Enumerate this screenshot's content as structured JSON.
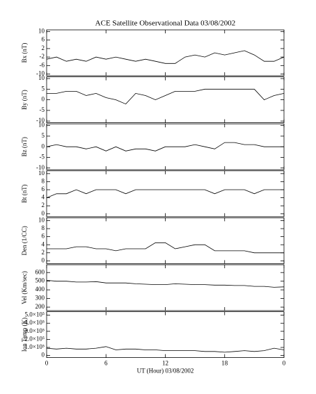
{
  "chart_data": [
    {
      "type": "line",
      "title": "ACE Satellite Observational Data   03/08/2002",
      "ylabel": "Bx (nT)",
      "x": [
        0,
        1,
        2,
        3,
        4,
        5,
        6,
        7,
        8,
        9,
        10,
        11,
        12,
        13,
        14,
        15,
        16,
        17,
        18,
        19,
        20,
        21,
        22,
        23,
        24
      ],
      "series": [
        {
          "name": "Bx",
          "color": "#000000",
          "values": [
            -3,
            -2,
            -4,
            -3,
            -4,
            -2,
            -3,
            -2,
            -3,
            -4,
            -3,
            -4,
            -5,
            -5,
            -2,
            -1,
            -2,
            0,
            -1,
            0,
            1,
            -1,
            -4,
            -4,
            -2
          ]
        }
      ],
      "xlim": [
        0,
        24
      ],
      "xticks": [
        0,
        6,
        12,
        18,
        {
          "value": 24,
          "label": "0"
        }
      ],
      "ylim": [
        -10.8,
        10.8
      ],
      "yticks": [
        10,
        6,
        2,
        -2,
        -6,
        -10
      ]
    },
    {
      "type": "line",
      "ylabel": "By (nT)",
      "x": [
        0,
        1,
        2,
        3,
        4,
        5,
        6,
        7,
        8,
        9,
        10,
        11,
        12,
        13,
        14,
        15,
        16,
        17,
        18,
        19,
        20,
        21,
        22,
        23,
        24
      ],
      "series": [
        {
          "name": "By",
          "color": "#000000",
          "values": [
            3,
            3,
            4,
            4,
            2,
            3,
            1,
            0,
            -2,
            3,
            2,
            0,
            2,
            4,
            4,
            4,
            5,
            5,
            5,
            5,
            5,
            5,
            0,
            2,
            3
          ]
        }
      ],
      "xlim": [
        0,
        24
      ],
      "xticks": [
        0,
        6,
        12,
        18,
        {
          "value": 24,
          "label": "0"
        }
      ],
      "ylim": [
        -10.8,
        10.8
      ],
      "yticks": [
        10,
        5,
        0,
        -5,
        -10
      ]
    },
    {
      "type": "line",
      "ylabel": "Bz (nT)",
      "x": [
        0,
        1,
        2,
        3,
        4,
        5,
        6,
        7,
        8,
        9,
        10,
        11,
        12,
        13,
        14,
        15,
        16,
        17,
        18,
        19,
        20,
        21,
        22,
        23,
        24
      ],
      "series": [
        {
          "name": "Bz",
          "color": "#000000",
          "values": [
            0,
            1,
            0,
            0,
            -1,
            0,
            -2,
            0,
            -2,
            -1,
            -1,
            -2,
            0,
            0,
            0,
            1,
            0,
            -1,
            2,
            2,
            1,
            1,
            0,
            0,
            0
          ]
        }
      ],
      "xlim": [
        0,
        24
      ],
      "xticks": [
        0,
        6,
        12,
        18,
        {
          "value": 24,
          "label": "0"
        }
      ],
      "ylim": [
        -10.8,
        10.8
      ],
      "yticks": [
        10,
        5,
        0,
        -5,
        -10
      ]
    },
    {
      "type": "line",
      "ylabel": "Bt (nT)",
      "x": [
        0,
        1,
        2,
        3,
        4,
        5,
        6,
        7,
        8,
        9,
        10,
        11,
        12,
        13,
        14,
        15,
        16,
        17,
        18,
        19,
        20,
        21,
        22,
        23,
        24
      ],
      "series": [
        {
          "name": "Bt",
          "color": "#000000",
          "values": [
            4,
            5,
            5,
            6,
            5,
            6,
            6,
            6,
            5,
            6,
            6,
            6,
            6,
            6,
            6,
            6,
            6,
            5,
            6,
            6,
            6,
            5,
            6,
            6,
            6
          ]
        }
      ],
      "xlim": [
        0,
        24
      ],
      "xticks": [
        0,
        6,
        12,
        18,
        {
          "value": 24,
          "label": "0"
        }
      ],
      "ylim": [
        -0.7,
        10.7
      ],
      "yticks": [
        10,
        8,
        6,
        4,
        2,
        0
      ]
    },
    {
      "type": "line",
      "ylabel": "Den (1/CC)",
      "x": [
        0,
        1,
        2,
        3,
        4,
        5,
        6,
        7,
        8,
        9,
        10,
        11,
        12,
        13,
        14,
        15,
        16,
        17,
        18,
        19,
        20,
        21,
        22,
        23,
        24
      ],
      "series": [
        {
          "name": "Den",
          "color": "#000000",
          "values": [
            3,
            3,
            3,
            3.5,
            3.5,
            3,
            3,
            2.5,
            3,
            3,
            3,
            4.5,
            4.5,
            3,
            3.5,
            4,
            4,
            2.5,
            2.5,
            2.5,
            2.5,
            2,
            2,
            2,
            2
          ]
        }
      ],
      "xlim": [
        0,
        24
      ],
      "xticks": [
        0,
        6,
        12,
        18,
        {
          "value": 24,
          "label": "0"
        }
      ],
      "ylim": [
        -0.7,
        10.7
      ],
      "yticks": [
        10,
        8,
        6,
        4,
        2,
        0
      ]
    },
    {
      "type": "line",
      "ylabel": "Vel (Km/sec)",
      "x": [
        0,
        1,
        2,
        3,
        4,
        5,
        6,
        7,
        8,
        9,
        10,
        11,
        12,
        13,
        14,
        15,
        16,
        17,
        18,
        19,
        20,
        21,
        22,
        23,
        24
      ],
      "series": [
        {
          "name": "Vel",
          "color": "#000000",
          "values": [
            510,
            500,
            500,
            490,
            490,
            495,
            480,
            480,
            480,
            470,
            465,
            460,
            460,
            470,
            465,
            460,
            460,
            455,
            455,
            450,
            450,
            440,
            440,
            430,
            435
          ]
        }
      ],
      "xlim": [
        0,
        24
      ],
      "xticks": [
        0,
        6,
        12,
        18,
        {
          "value": 24,
          "label": "0"
        }
      ],
      "ylim": [
        160,
        690
      ],
      "yticks": [
        600,
        500,
        400,
        300,
        200
      ]
    },
    {
      "type": "line",
      "ylabel": "Ion Temp (K)",
      "xlabel": "UT (Hour)  03/08/2002",
      "x": [
        0,
        1,
        2,
        3,
        4,
        5,
        6,
        7,
        8,
        9,
        10,
        11,
        12,
        13,
        14,
        15,
        16,
        17,
        18,
        19,
        20,
        21,
        22,
        23,
        24
      ],
      "series": [
        {
          "name": "Ion Temp",
          "color": "#000000",
          "values": [
            90000,
            80000,
            90000,
            80000,
            80000,
            90000,
            110000,
            70000,
            80000,
            80000,
            70000,
            70000,
            60000,
            60000,
            60000,
            60000,
            50000,
            50000,
            40000,
            50000,
            60000,
            50000,
            60000,
            90000,
            70000
          ]
        }
      ],
      "xlim": [
        0,
        24
      ],
      "xticks": [
        0,
        6,
        12,
        18,
        {
          "value": 24,
          "label": "0"
        }
      ],
      "ylim": [
        -26000,
        543000
      ],
      "yticks": [
        0,
        {
          "value": 100000,
          "label": "1.0×10⁵"
        },
        {
          "value": 200000,
          "label": "2.0×10⁵"
        },
        {
          "value": 300000,
          "label": "3.0×10⁵"
        },
        {
          "value": 400000,
          "label": "4.0×10⁵"
        },
        {
          "value": 500000,
          "label": "5.0×10⁵"
        }
      ]
    }
  ]
}
